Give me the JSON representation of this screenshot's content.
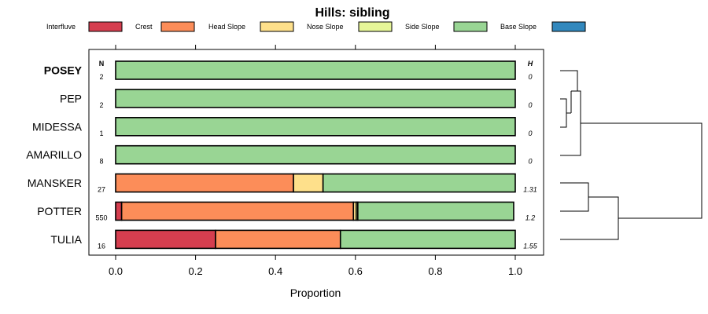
{
  "chart_data": {
    "type": "bar",
    "stacked": true,
    "orientation": "horizontal",
    "title": "Hills: sibling",
    "xlabel": "Proportion",
    "xlim": [
      0,
      1
    ],
    "x_ticks": [
      "0.0",
      "0.2",
      "0.4",
      "0.6",
      "0.8",
      "1.0"
    ],
    "n_header": "N",
    "h_header": "H",
    "legend": [
      {
        "name": "Interfluve",
        "color": "#d53e4f"
      },
      {
        "name": "Crest",
        "color": "#fc8d59"
      },
      {
        "name": "Head Slope",
        "color": "#fee08b"
      },
      {
        "name": "Nose Slope",
        "color": "#e6f598"
      },
      {
        "name": "Side Slope",
        "color": "#99d594"
      },
      {
        "name": "Base Slope",
        "color": "#3288bd"
      }
    ],
    "rows": [
      {
        "label": "POSEY",
        "bold": true,
        "n": "2",
        "h": "0",
        "values": [
          0,
          0,
          0,
          0,
          1.0,
          0
        ]
      },
      {
        "label": "PEP",
        "bold": false,
        "n": "2",
        "h": "0",
        "values": [
          0,
          0,
          0,
          0,
          1.0,
          0
        ]
      },
      {
        "label": "MIDESSA",
        "bold": false,
        "n": "1",
        "h": "0",
        "values": [
          0,
          0,
          0,
          0,
          1.0,
          0
        ]
      },
      {
        "label": "AMARILLO",
        "bold": false,
        "n": "8",
        "h": "0",
        "values": [
          0,
          0,
          0,
          0,
          1.0,
          0
        ]
      },
      {
        "label": "MANSKER",
        "bold": false,
        "n": "27",
        "h": "1.31",
        "values": [
          0,
          0.445,
          0.074,
          0,
          0.481,
          0
        ]
      },
      {
        "label": "POTTER",
        "bold": false,
        "n": "550",
        "h": "1.2",
        "values": [
          0.015,
          0.58,
          0.007,
          0.004,
          0.39,
          0
        ]
      },
      {
        "label": "TULIA",
        "bold": false,
        "n": "16",
        "h": "1.55",
        "values": [
          0.25,
          0.3125,
          0,
          0,
          0.4375,
          0
        ]
      }
    ],
    "dendrogram": "hierarchical clustering of the seven series (POSEY, PEP, MIDESSA, AMARILLO vs. MANSKER, POTTER, TULIA)"
  }
}
